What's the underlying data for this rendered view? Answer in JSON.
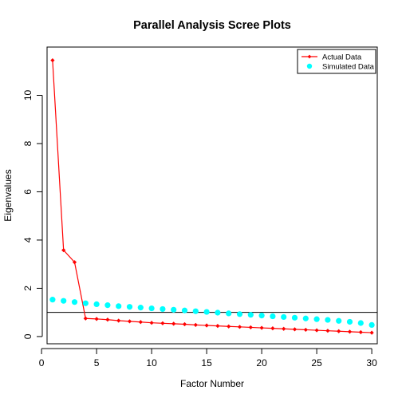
{
  "chart_data": {
    "type": "scatter",
    "title": "Parallel Analysis Scree Plots",
    "xlabel": "Factor Number",
    "ylabel": "Eigenvalues",
    "xlim": [
      0.5,
      30.5
    ],
    "ylim": [
      -0.3,
      12.0
    ],
    "xticks": [
      0,
      5,
      10,
      15,
      20,
      25,
      30
    ],
    "yticks": [
      0,
      2,
      4,
      6,
      8,
      10
    ],
    "reference_line": 1,
    "legend_position": "top-right",
    "series": [
      {
        "name": "Actual Data",
        "color": "#ff0000",
        "style": "line-points",
        "x": [
          1,
          2,
          3,
          4,
          5,
          6,
          7,
          8,
          9,
          10,
          11,
          12,
          13,
          14,
          15,
          16,
          17,
          18,
          19,
          20,
          21,
          22,
          23,
          24,
          25,
          26,
          27,
          28,
          29,
          30
        ],
        "values": [
          11.45,
          3.58,
          3.08,
          0.75,
          0.73,
          0.7,
          0.66,
          0.63,
          0.6,
          0.57,
          0.55,
          0.53,
          0.51,
          0.48,
          0.46,
          0.44,
          0.42,
          0.4,
          0.38,
          0.36,
          0.34,
          0.32,
          0.3,
          0.28,
          0.26,
          0.24,
          0.22,
          0.2,
          0.18,
          0.16
        ]
      },
      {
        "name": "Simulated Data",
        "color": "#00ffff",
        "style": "points",
        "x": [
          1,
          2,
          3,
          4,
          5,
          6,
          7,
          8,
          9,
          10,
          11,
          12,
          13,
          14,
          15,
          16,
          17,
          18,
          19,
          20,
          21,
          22,
          23,
          24,
          25,
          26,
          27,
          28,
          29,
          30
        ],
        "values": [
          1.53,
          1.48,
          1.43,
          1.38,
          1.34,
          1.3,
          1.26,
          1.23,
          1.2,
          1.17,
          1.14,
          1.11,
          1.08,
          1.05,
          1.02,
          0.99,
          0.96,
          0.93,
          0.9,
          0.87,
          0.84,
          0.81,
          0.78,
          0.75,
          0.72,
          0.69,
          0.65,
          0.61,
          0.56,
          0.48
        ]
      }
    ]
  }
}
